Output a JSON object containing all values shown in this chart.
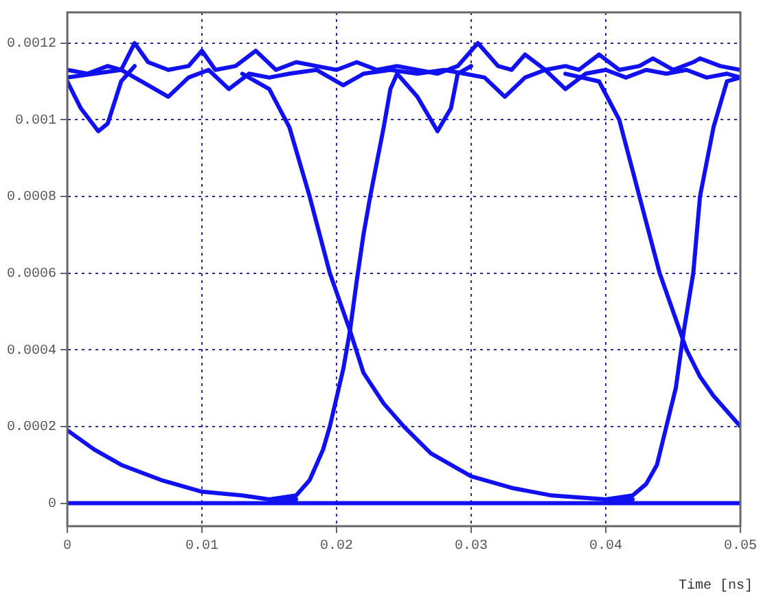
{
  "chart_data": {
    "type": "line",
    "xlabel": "Time [ns]",
    "xlim": [
      0,
      0.05
    ],
    "ylim": [
      -6e-05,
      0.00128
    ],
    "xticks": [
      0,
      0.01,
      0.02,
      0.03,
      0.04,
      0.05
    ],
    "yticks": [
      0,
      0.0002,
      0.0004,
      0.0006,
      0.0008,
      0.001,
      0.0012
    ],
    "grid": true,
    "marker": "none",
    "line_style": "solid",
    "series": [
      {
        "color": "#1010f0",
        "x": [
          0,
          0.0015,
          0.003,
          0.004,
          0.005,
          0.006,
          0.0075,
          0.009,
          0.01,
          0.011,
          0.0125,
          0.014,
          0.0155,
          0.017,
          0.0185,
          0.02,
          0.0215,
          0.023,
          0.0245,
          0.026,
          0.0275,
          0.029,
          0.0305,
          0.032,
          0.033,
          0.034,
          0.0355,
          0.037,
          0.038,
          0.0395,
          0.041,
          0.0425,
          0.0435,
          0.045,
          0.0465,
          0.047,
          0.0485,
          0.05
        ],
        "values": [
          0.00113,
          0.00112,
          0.00114,
          0.00113,
          0.0012,
          0.00115,
          0.00113,
          0.00114,
          0.00118,
          0.00113,
          0.00114,
          0.00118,
          0.00113,
          0.00115,
          0.00114,
          0.00113,
          0.00115,
          0.00113,
          0.00114,
          0.00113,
          0.00112,
          0.00114,
          0.0012,
          0.00114,
          0.00113,
          0.00117,
          0.00113,
          0.00114,
          0.00113,
          0.00117,
          0.00113,
          0.00114,
          0.00116,
          0.00113,
          0.00115,
          0.00116,
          0.00114,
          0.00113
        ]
      },
      {
        "color": "#1010f0",
        "x": [
          0,
          0.002,
          0.004,
          0.0055,
          0.0075,
          0.009,
          0.0105,
          0.012,
          0.0135,
          0.015,
          0.0165,
          0.0185,
          0.0205,
          0.022,
          0.024,
          0.026,
          0.028,
          0.0295,
          0.031,
          0.0325,
          0.034,
          0.0355,
          0.037,
          0.0385,
          0.04,
          0.0415,
          0.043,
          0.0445,
          0.046,
          0.0475,
          0.049,
          0.05
        ],
        "values": [
          0.00111,
          0.00112,
          0.00113,
          0.0011,
          0.00106,
          0.00111,
          0.00113,
          0.00108,
          0.00112,
          0.00111,
          0.00112,
          0.00113,
          0.00109,
          0.00112,
          0.00113,
          0.00112,
          0.00113,
          0.00112,
          0.00111,
          0.00106,
          0.00111,
          0.00113,
          0.00108,
          0.00112,
          0.00113,
          0.00111,
          0.00113,
          0.00112,
          0.00113,
          0.00111,
          0.00112,
          0.00111
        ]
      },
      {
        "color": "#1010f0",
        "x": [
          0,
          0.01,
          0.02,
          0.03,
          0.04,
          0.05
        ],
        "values": [
          0,
          0,
          0,
          0,
          0,
          0
        ]
      },
      {
        "color": "#1010f0",
        "x": [
          0,
          0.002,
          0.004,
          0.007,
          0.01,
          0.013,
          0.015,
          0.017
        ],
        "values": [
          0.00019,
          0.00014,
          0.0001,
          6e-05,
          3e-05,
          2e-05,
          1e-05,
          1e-05
        ]
      },
      {
        "color": "#1010f0",
        "x": [
          0.013,
          0.015,
          0.0165,
          0.018,
          0.0195,
          0.021,
          0.022,
          0.0235,
          0.025,
          0.027,
          0.03,
          0.033,
          0.036,
          0.04,
          0.042
        ],
        "values": [
          0.00112,
          0.00108,
          0.00098,
          0.0008,
          0.0006,
          0.00045,
          0.00034,
          0.00026,
          0.0002,
          0.00013,
          7e-05,
          4e-05,
          2e-05,
          1e-05,
          1e-05
        ]
      },
      {
        "color": "#1010f0",
        "x": [
          0.015,
          0.017,
          0.018,
          0.019,
          0.0195,
          0.0205,
          0.021,
          0.0215,
          0.022,
          0.0225,
          0.0235,
          0.024,
          0.0245,
          0.026,
          0.0275,
          0.0285,
          0.029,
          0.03
        ],
        "values": [
          1e-05,
          2e-05,
          6e-05,
          0.00014,
          0.0002,
          0.00035,
          0.00045,
          0.00058,
          0.0007,
          0.0008,
          0.00098,
          0.00108,
          0.00112,
          0.00106,
          0.00097,
          0.00103,
          0.00112,
          0.00114
        ]
      },
      {
        "color": "#1010f0",
        "x": [
          0,
          0.001,
          0.0023,
          0.003,
          0.004,
          0.005
        ],
        "values": [
          0.0011,
          0.00103,
          0.00097,
          0.00099,
          0.0011,
          0.00114
        ]
      },
      {
        "color": "#1010f0",
        "x": [
          0.037,
          0.0395,
          0.041,
          0.0425,
          0.044,
          0.0455,
          0.046,
          0.047,
          0.048,
          0.05
        ],
        "values": [
          0.00112,
          0.0011,
          0.001,
          0.0008,
          0.0006,
          0.00045,
          0.0004,
          0.00033,
          0.00028,
          0.0002
        ]
      },
      {
        "color": "#1010f0",
        "x": [
          0.04,
          0.042,
          0.043,
          0.0438,
          0.0445,
          0.0452,
          0.0458,
          0.0465,
          0.047,
          0.048,
          0.049,
          0.05
        ],
        "values": [
          1e-05,
          2e-05,
          5e-05,
          0.0001,
          0.0002,
          0.0003,
          0.00045,
          0.0006,
          0.0008,
          0.00098,
          0.0011,
          0.00111
        ]
      }
    ]
  }
}
